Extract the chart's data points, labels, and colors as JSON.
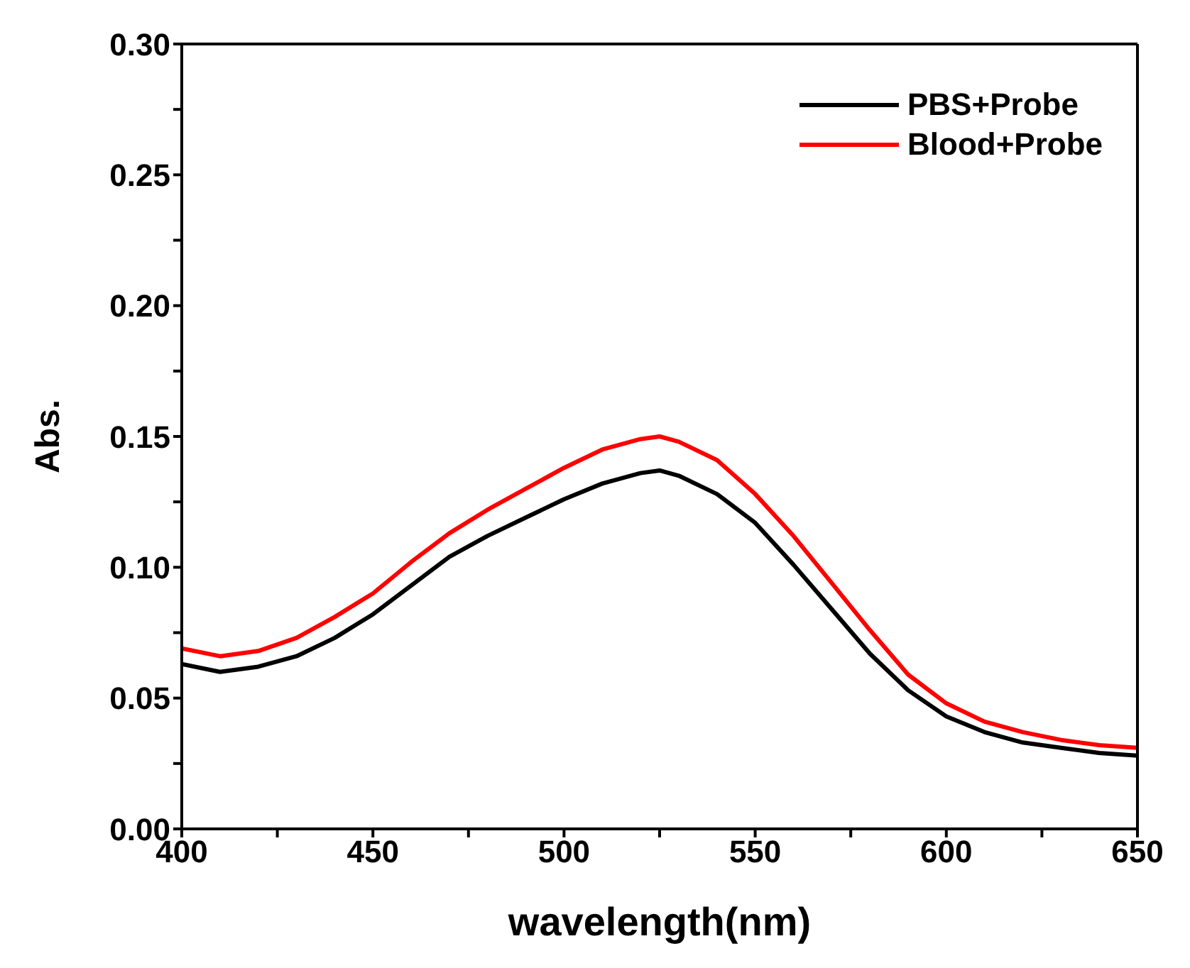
{
  "chart_data": {
    "type": "line",
    "xlabel": "wavelength(nm)",
    "ylabel": "Abs.",
    "x": [
      400,
      410,
      420,
      430,
      440,
      450,
      460,
      470,
      480,
      490,
      500,
      510,
      520,
      525,
      530,
      540,
      550,
      560,
      570,
      580,
      590,
      600,
      610,
      620,
      630,
      640,
      650
    ],
    "series": [
      {
        "name": "PBS+Probe",
        "color": "#000000",
        "values": [
          0.063,
          0.06,
          0.062,
          0.066,
          0.073,
          0.082,
          0.093,
          0.104,
          0.112,
          0.119,
          0.126,
          0.132,
          0.136,
          0.137,
          0.135,
          0.128,
          0.117,
          0.101,
          0.084,
          0.067,
          0.053,
          0.043,
          0.037,
          0.033,
          0.031,
          0.029,
          0.028
        ]
      },
      {
        "name": "Blood+Probe",
        "color": "#ff0000",
        "values": [
          0.069,
          0.066,
          0.068,
          0.073,
          0.081,
          0.09,
          0.102,
          0.113,
          0.122,
          0.13,
          0.138,
          0.145,
          0.149,
          0.15,
          0.148,
          0.141,
          0.128,
          0.112,
          0.094,
          0.076,
          0.059,
          0.048,
          0.041,
          0.037,
          0.034,
          0.032,
          0.031
        ]
      }
    ],
    "xlim": [
      400,
      650
    ],
    "xticks": [
      400,
      {
        "value": 425,
        "label": null
      },
      450,
      {
        "value": 475,
        "label": null
      },
      500,
      {
        "value": 525,
        "label": null
      },
      550,
      {
        "value": 575,
        "label": null
      },
      600,
      {
        "value": 625,
        "label": null
      },
      650
    ],
    "ylim": [
      0,
      0.3
    ],
    "yticks": [
      {
        "value": 0,
        "label": "0.00"
      },
      {
        "value": 0.025,
        "label": null
      },
      {
        "value": 0.05,
        "label": "0.05"
      },
      {
        "value": 0.075,
        "label": null
      },
      {
        "value": 0.1,
        "label": "0.10"
      },
      {
        "value": 0.125,
        "label": null
      },
      {
        "value": 0.15,
        "label": "0.15"
      },
      {
        "value": 0.175,
        "label": null
      },
      {
        "value": 0.2,
        "label": "0.20"
      },
      {
        "value": 0.225,
        "label": null
      },
      {
        "value": 0.25,
        "label": "0.25"
      },
      {
        "value": 0.275,
        "label": null
      },
      {
        "value": 0.3,
        "label": "0.30"
      }
    ],
    "legend": "top right",
    "grid": false,
    "marker": "none",
    "line_style": "solid"
  }
}
